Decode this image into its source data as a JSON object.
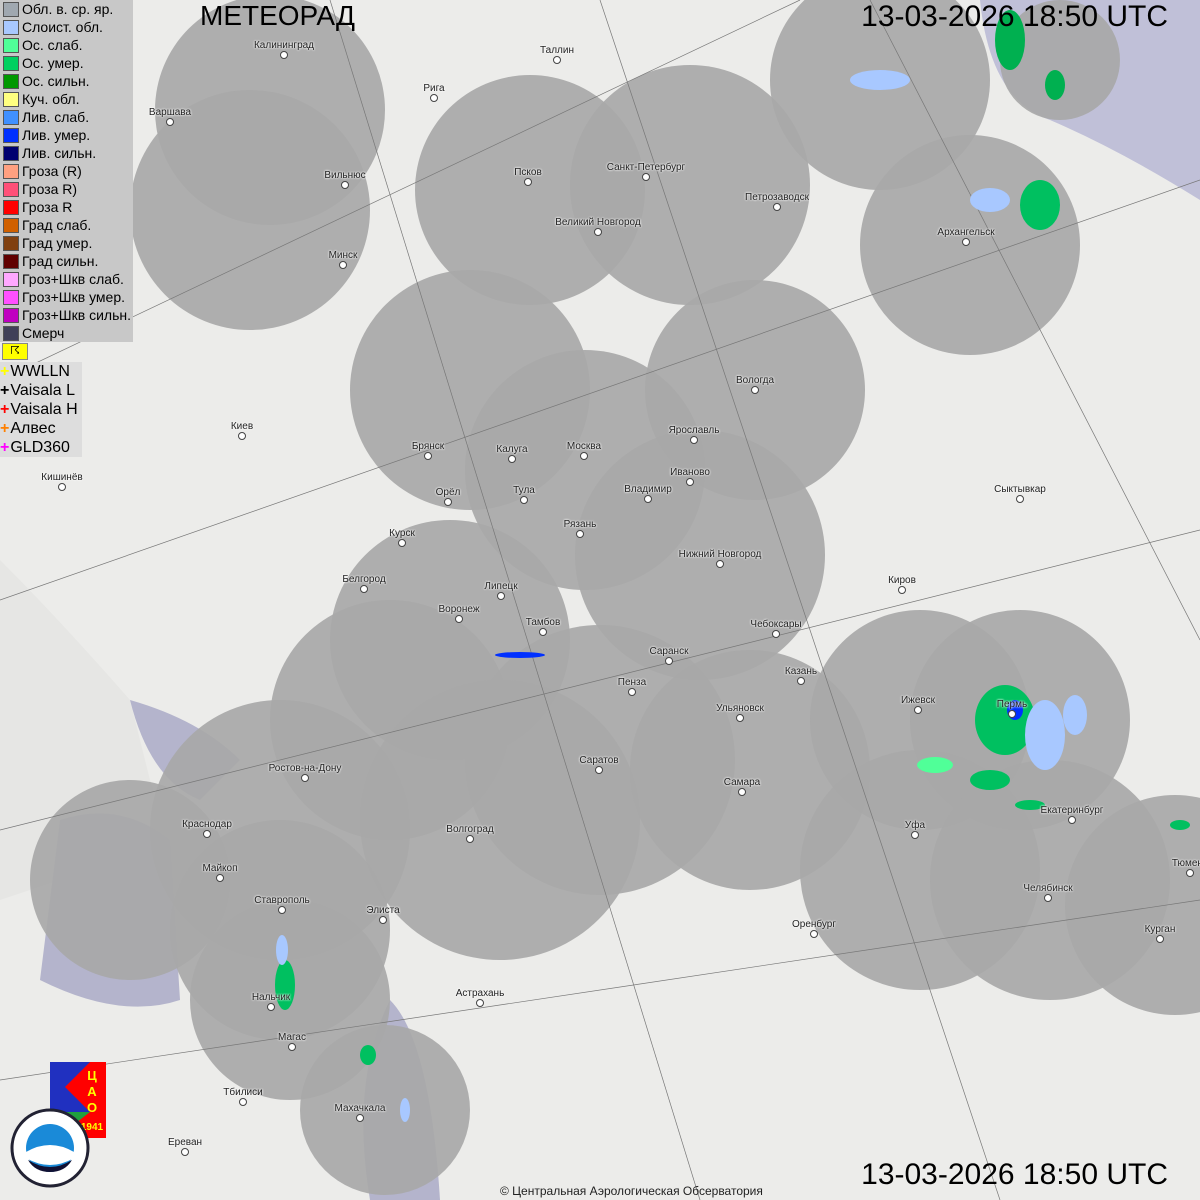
{
  "title": "МЕТЕОРАД",
  "timestamp": "13-03-2026  18:50 UTC",
  "copyright": "© Центральная Аэрологическая Обсерватория",
  "legend": [
    {
      "label": "Обл. в. ср. яр.",
      "color": "#a0a8b0"
    },
    {
      "label": "Слоист. обл.",
      "color": "#a8c8ff"
    },
    {
      "label": "Ос. слаб.",
      "color": "#50ff98"
    },
    {
      "label": "Ос. умер.",
      "color": "#00d060"
    },
    {
      "label": "Ос. сильн.",
      "color": "#009800"
    },
    {
      "label": "Куч. обл.",
      "color": "#ffff80"
    },
    {
      "label": "Лив. слаб.",
      "color": "#4090ff"
    },
    {
      "label": "Лив. умер.",
      "color": "#0030ff"
    },
    {
      "label": "Лив. сильн.",
      "color": "#000070"
    },
    {
      "label": "Гроза (R)",
      "color": "#ffa080"
    },
    {
      "label": "Гроза R)",
      "color": "#ff5078"
    },
    {
      "label": "Гроза R",
      "color": "#ff0000"
    },
    {
      "label": "Град слаб.",
      "color": "#d06000"
    },
    {
      "label": "Град умер.",
      "color": "#804010"
    },
    {
      "label": "Град сильн.",
      "color": "#600000"
    },
    {
      "label": "Гроз+Шкв слаб.",
      "color": "#ffa8ff"
    },
    {
      "label": "Гроз+Шкв умер.",
      "color": "#ff50ff"
    },
    {
      "label": "Гроз+Шкв сильн.",
      "color": "#c000c0"
    },
    {
      "label": "Смерч",
      "color": "#404058"
    }
  ],
  "lightning": [
    {
      "label": "WWLLN",
      "color": "#ffff00"
    },
    {
      "label": "Vaisala L",
      "color": "#000000"
    },
    {
      "label": "Vaisala H",
      "color": "#ff0000"
    },
    {
      "label": "Алвес",
      "color": "#ff8000"
    },
    {
      "label": "GLD360",
      "color": "#ff00ff"
    }
  ],
  "logos": {
    "cao": "ЦАО 1941",
    "roshydromet": "РОСГИДРОМЕТ ROSHYDROMET"
  },
  "cities": [
    "Калининград",
    "Таллин",
    "Рига",
    "Варшава",
    "Вильнюс",
    "Псков",
    "Санкт-Петербург",
    "Петрозаводск",
    "Великий Новгород",
    "Архангельск",
    "Минск",
    "Вологда",
    "Ярославль",
    "Киев",
    "Брянск",
    "Калуга",
    "Москва",
    "Иваново",
    "Кишинёв",
    "Орёл",
    "Тула",
    "Владимир",
    "Сыктывкар",
    "Рязань",
    "Курск",
    "Нижний Новгород",
    "Белгород",
    "Липецк",
    "Киров",
    "Воронеж",
    "Тамбов",
    "Чебоксары",
    "Саранск",
    "Казань",
    "Пенза",
    "Ижевск",
    "Пермь",
    "Ульяновск",
    "Ростов-на-Дону",
    "Саратов",
    "Самара",
    "Краснодар",
    "Волгоград",
    "Уфа",
    "Екатеринбург",
    "Майкоп",
    "Тюмень",
    "Челябинск",
    "Ставрополь",
    "Элиста",
    "Оренбург",
    "Курган",
    "Астрахань",
    "Нальчик",
    "Магас",
    "Тбилиси",
    "Махачкала",
    "Ереван"
  ]
}
